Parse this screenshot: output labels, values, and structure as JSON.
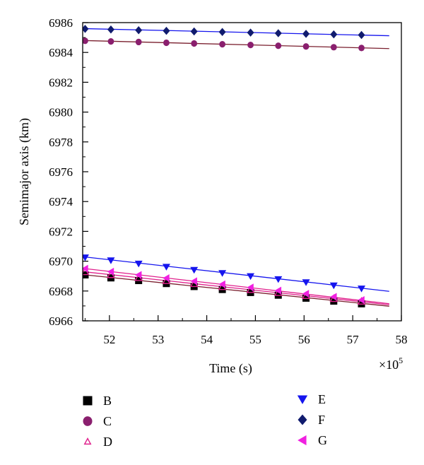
{
  "chart_data": {
    "type": "scatter",
    "xlabel": "Time (s)",
    "ylabel": "Semimajor axis (km)",
    "x_multiplier": "×10",
    "x_multiplier_exponent": "5",
    "xlim": [
      51.45,
      58
    ],
    "ylim": [
      6966,
      6986
    ],
    "xticks": [
      "52",
      "53",
      "54",
      "55",
      "56",
      "57",
      "58"
    ],
    "yticks": [
      "6966",
      "6968",
      "6970",
      "6972",
      "6974",
      "6976",
      "6978",
      "6980",
      "6982",
      "6984",
      "6986"
    ],
    "grid": false,
    "legend_position": "bottom",
    "series": [
      {
        "name": "B",
        "marker": "square",
        "color": "#000000",
        "line_color": "#7a1f2e",
        "x": [
          51.5,
          52.03,
          52.6,
          53.17,
          53.74,
          54.32,
          54.9,
          55.47,
          56.04,
          56.61,
          57.18
        ],
        "y": [
          6969.08,
          6968.88,
          6968.7,
          6968.5,
          6968.3,
          6968.1,
          6967.9,
          6967.72,
          6967.52,
          6967.32,
          6967.14
        ],
        "fit": [
          [
            51.45,
            6969.1
          ],
          [
            57.75,
            6966.98
          ]
        ]
      },
      {
        "name": "C",
        "marker": "circle",
        "color": "#8a1f6e",
        "line_color": "#7a1f2e",
        "x": [
          51.5,
          52.03,
          52.6,
          53.17,
          53.74,
          54.32,
          54.9,
          55.47,
          56.04,
          56.61,
          57.18
        ],
        "y": [
          6984.78,
          6984.74,
          6984.7,
          6984.65,
          6984.6,
          6984.55,
          6984.5,
          6984.45,
          6984.4,
          6984.35,
          6984.3
        ],
        "fit": [
          [
            51.45,
            6984.8
          ],
          [
            57.75,
            6984.26
          ]
        ]
      },
      {
        "name": "D",
        "marker": "triangle-up-open",
        "color": "#e0208c",
        "line_color": "#e0208c",
        "x": [
          51.5,
          52.03,
          52.6,
          53.17,
          53.74,
          54.32,
          54.9,
          55.47,
          56.04,
          56.61,
          57.18
        ],
        "y": [
          6969.28,
          6969.08,
          6968.88,
          6968.68,
          6968.48,
          6968.28,
          6968.08,
          6967.88,
          6967.68,
          6967.48,
          6967.3
        ],
        "fit": [
          [
            51.45,
            6969.3
          ],
          [
            57.75,
            6967.08
          ]
        ]
      },
      {
        "name": "E",
        "marker": "triangle-down",
        "color": "#1515ee",
        "line_color": "#1515ee",
        "x": [
          51.5,
          52.03,
          52.6,
          53.17,
          53.74,
          54.32,
          54.9,
          55.47,
          56.04,
          56.61,
          57.18
        ],
        "y": [
          6970.25,
          6970.05,
          6969.83,
          6969.62,
          6969.41,
          6969.2,
          6968.99,
          6968.79,
          6968.58,
          6968.37,
          6968.16
        ],
        "fit": [
          [
            51.45,
            6970.3
          ],
          [
            57.75,
            6967.98
          ]
        ]
      },
      {
        "name": "F",
        "marker": "diamond",
        "color": "#101b6e",
        "line_color": "#1515ee",
        "x": [
          51.5,
          52.03,
          52.6,
          53.17,
          53.74,
          54.32,
          54.9,
          55.47,
          56.04,
          56.61,
          57.18
        ],
        "y": [
          6985.58,
          6985.54,
          6985.49,
          6985.45,
          6985.41,
          6985.37,
          6985.33,
          6985.29,
          6985.25,
          6985.21,
          6985.17
        ],
        "fit": [
          [
            51.45,
            6985.6
          ],
          [
            57.75,
            6985.12
          ]
        ]
      },
      {
        "name": "G",
        "marker": "triangle-left",
        "color": "#f020e0",
        "line_color": "#e0208c",
        "x": [
          51.5,
          52.03,
          52.6,
          53.17,
          53.74,
          54.32,
          54.9,
          55.47,
          56.04,
          56.61,
          57.18
        ],
        "y": [
          6969.5,
          6969.3,
          6969.08,
          6968.87,
          6968.66,
          6968.45,
          6968.24,
          6968.03,
          6967.82,
          6967.61,
          6967.4
        ],
        "fit": [
          [
            51.45,
            6969.52
          ],
          [
            57.75,
            6967.15
          ]
        ]
      }
    ]
  }
}
